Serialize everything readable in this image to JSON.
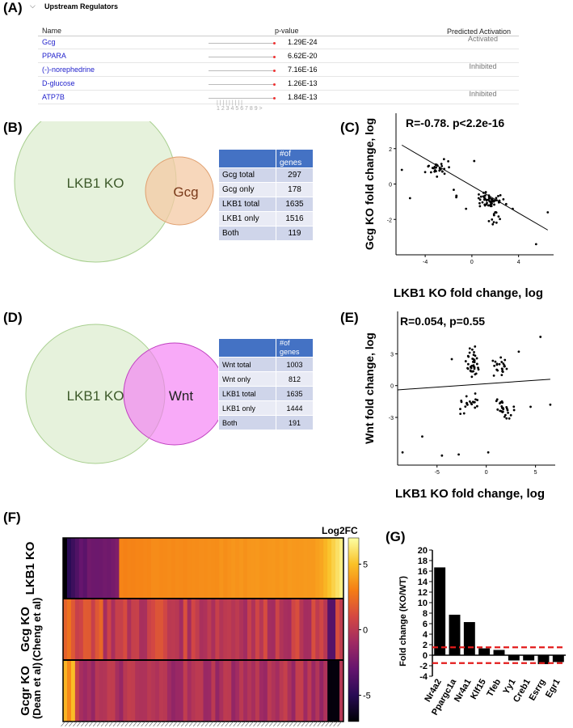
{
  "panels": {
    "A": "(A)",
    "B": "(B)",
    "C": "(C)",
    "D": "(D)",
    "E": "(E)",
    "F": "(F)",
    "G": "(G)"
  },
  "regulators": {
    "title": "Upstream Regulators",
    "headers": {
      "name": "Name",
      "pvalue": "p-value",
      "activation": "Predicted Activation"
    },
    "rows": [
      {
        "name": "Gcg",
        "pvalue": "1.29E-24",
        "activation": "Activated"
      },
      {
        "name": "PPARA",
        "pvalue": "6.62E-20",
        "activation": ""
      },
      {
        "name": "(-)-norephedrine",
        "pvalue": "7.16E-16",
        "activation": "Inhibited"
      },
      {
        "name": "D-glucose",
        "pvalue": "1.26E-13",
        "activation": ""
      },
      {
        "name": "ATP7B",
        "pvalue": "1.84E-13",
        "activation": "Inhibited"
      }
    ],
    "scale_labels": "1 2 3 4 5 6 7 8 9"
  },
  "venn_b": {
    "left": "LKB1 KO",
    "right": "Gcg",
    "colors": {
      "left": "#e6f2dc",
      "right": "#f4caa4"
    }
  },
  "table_b": {
    "header": "#of genes",
    "rows": [
      [
        "Gcg total",
        "297"
      ],
      [
        "Gcg only",
        "178"
      ],
      [
        "LKB1 total",
        "1635"
      ],
      [
        "LKB1 only",
        "1516"
      ],
      [
        "Both",
        "119"
      ]
    ]
  },
  "venn_d": {
    "left": "LKB1 KO",
    "right": "Wnt",
    "colors": {
      "left": "#e6f2dc",
      "right": "#f47cf4"
    }
  },
  "table_d": {
    "header": "#of genes",
    "rows": [
      [
        "Wnt total",
        "1003"
      ],
      [
        "Wnt only",
        "812"
      ],
      [
        "LKB1 total",
        "1635"
      ],
      [
        "LKB1 only",
        "1444"
      ],
      [
        "Both",
        "191"
      ]
    ]
  },
  "chart_data": [
    {
      "type": "scatter",
      "panel": "C",
      "title": "R=-0.78. p<2.2e-16",
      "xlabel": "LKB1 KO fold change, log",
      "ylabel": "Gcg KO fold change, log",
      "xlim": [
        -6.5,
        7
      ],
      "ylim": [
        -4,
        4
      ],
      "xticks": [
        -4,
        0,
        4
      ],
      "yticks": [
        2,
        0,
        -2
      ],
      "fit_line": [
        [
          -6,
          2.2
        ],
        [
          6.5,
          -2.6
        ]
      ]
    },
    {
      "type": "scatter",
      "panel": "E",
      "title": "R=0.054, p=0.55",
      "xlabel": "LKB1 KO fold change, log",
      "ylabel": "Wnt fold change, log",
      "xlim": [
        -9,
        7
      ],
      "ylim": [
        -7.5,
        7
      ],
      "xticks": [
        -5,
        0,
        5
      ],
      "yticks": [
        3,
        0,
        -3
      ],
      "fit_line": [
        [
          -9,
          -0.4
        ],
        [
          6.5,
          0.6
        ]
      ]
    },
    {
      "type": "heatmap",
      "panel": "F",
      "rows": [
        "LKB1 KO",
        "Gcg KO (Cheng et al)",
        "Gcgr KO (Dean et al)"
      ],
      "row_label_main": [
        "LKB1 KO",
        "Gcg KO",
        "Gcgr KO"
      ],
      "row_label_sub": [
        "",
        "(Cheng et al)",
        "(Dean et al)"
      ],
      "colorbar_title": "Log2FC",
      "colorbar_ticks": [
        5,
        0,
        -5
      ],
      "zlim": [
        -7,
        7
      ]
    },
    {
      "type": "bar",
      "panel": "G",
      "categories": [
        "Nr4a2",
        "Ppargc1a",
        "Nr4a1",
        "Klf15",
        "Tfeb",
        "Yy1",
        "Creb1",
        "Esrrg",
        "Egr1"
      ],
      "values": [
        16.7,
        7.7,
        6.3,
        1.3,
        1.0,
        -1.0,
        -1.0,
        -1.7,
        -1.3
      ],
      "ylabel": "Fold change (KO/WT)",
      "ylim": [
        -4,
        20
      ],
      "yticks": [
        20,
        18,
        16,
        14,
        12,
        10,
        8,
        6,
        4,
        2,
        0,
        -2,
        -4
      ],
      "threshold_lines": [
        1.5,
        -1.5
      ]
    }
  ]
}
